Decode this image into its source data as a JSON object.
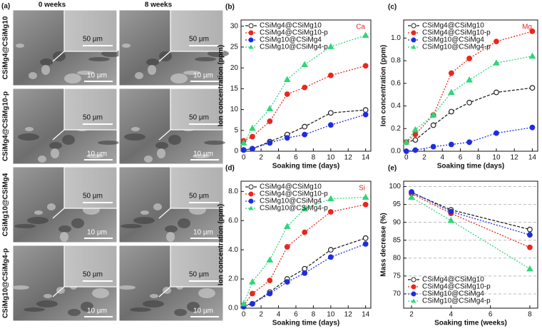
{
  "panel_a": {
    "label": "(a)",
    "columns": [
      "0 weeks",
      "8 weeks"
    ],
    "rows": [
      "CSiMg4@CSiMg10",
      "CSiMg4@CSiMg10-p",
      "CSiMg10@CSiMg4",
      "CSiMg10@CSiMg4-p"
    ],
    "inset_scale": "50 µm",
    "main_scale": "10 µm"
  },
  "chart_data": [
    {
      "type": "line",
      "panel": "(b)",
      "annotation": "Ca",
      "annotation_color": "#e8281e",
      "x_label": "Soaking time (days)",
      "y_label": "Ion concentration (ppm)",
      "x": [
        0,
        1,
        3,
        5,
        7,
        10,
        14
      ],
      "xlim": [
        -0.3,
        14.6
      ],
      "xticks": [
        0,
        2,
        4,
        6,
        8,
        10,
        12,
        14
      ],
      "ylim": [
        0,
        31.5
      ],
      "yticks": [
        0,
        5,
        10,
        15,
        20,
        25,
        30
      ],
      "grid": false,
      "legend": "upper left",
      "series": [
        {
          "name": "CSiMg4@CSiMg10",
          "color": "#222222",
          "linestyle": "dashed",
          "marker": "circle",
          "values": [
            0.3,
            0.6,
            2.3,
            4,
            5.9,
            9.2,
            9.9
          ]
        },
        {
          "name": "CSiMg4@CSiMg10-p",
          "color": "#e8281e",
          "linestyle": "dotted",
          "marker": "circle",
          "values": [
            2.5,
            3.5,
            7.2,
            13.7,
            15.3,
            18.2,
            20.5
          ]
        },
        {
          "name": "CSiMg10@CSiMg4",
          "color": "#1f2de0",
          "linestyle": "dotted",
          "marker": "circle",
          "values": [
            0.3,
            0.6,
            2,
            3.2,
            4,
            6.3,
            8.8
          ]
        },
        {
          "name": "CSiMg10@CSiMg4-p",
          "color": "#2fd67a",
          "linestyle": "dotted",
          "marker": "triangle",
          "values": [
            2,
            5.5,
            10.2,
            17.2,
            20.8,
            25.1,
            27.8
          ]
        }
      ]
    },
    {
      "type": "line",
      "panel": "(c)",
      "annotation": "Mg",
      "annotation_color": "#e8281e",
      "x_label": "Soaking time (days)",
      "y_label": "Ion concentration (ppm)",
      "x": [
        0,
        1,
        3,
        5,
        7,
        10,
        14
      ],
      "xlim": [
        -0.3,
        14.6
      ],
      "xticks": [
        0,
        2,
        4,
        6,
        8,
        10,
        12,
        14
      ],
      "ylim": [
        0,
        1.16
      ],
      "yticks": [
        {
          "value": 0,
          "label": "0.0"
        },
        0.2,
        0.4,
        0.6,
        0.8,
        {
          "value": 1,
          "label": "1.0"
        }
      ],
      "grid": false,
      "legend": "upper left",
      "series": [
        {
          "name": "CSiMg4@CSiMg10",
          "color": "#222222",
          "linestyle": "dashed",
          "marker": "circle",
          "values": [
            0.08,
            0.1,
            0.23,
            0.35,
            0.43,
            0.52,
            0.56
          ]
        },
        {
          "name": "CSiMg4@CSiMg10-p",
          "color": "#e8281e",
          "linestyle": "dotted",
          "marker": "circle",
          "values": [
            0.08,
            0.15,
            0.32,
            0.69,
            0.82,
            0.97,
            1.06
          ]
        },
        {
          "name": "CSiMg10@CSiMg4",
          "color": "#1f2de0",
          "linestyle": "dotted",
          "marker": "circle",
          "values": [
            0,
            0.01,
            0.04,
            0.06,
            0.08,
            0.16,
            0.21
          ]
        },
        {
          "name": "CSiMg10@CSiMg4-p",
          "color": "#2fd67a",
          "linestyle": "dotted",
          "marker": "triangle",
          "values": [
            0.08,
            0.19,
            0.32,
            0.52,
            0.63,
            0.78,
            0.84
          ]
        }
      ]
    },
    {
      "type": "line",
      "panel": "(d)",
      "annotation": "Si",
      "annotation_color": "#e8281e",
      "x_label": "Soaking time (days)",
      "y_label": "Ion concentration (ppm)",
      "x": [
        0,
        1,
        3,
        5,
        7,
        10,
        14
      ],
      "xlim": [
        -0.3,
        14.6
      ],
      "xticks": [
        0,
        2,
        4,
        6,
        8,
        10,
        12,
        14
      ],
      "ylim": [
        0,
        8.7
      ],
      "yticks": [
        {
          "value": 0,
          "label": "0.0"
        },
        {
          "value": 2,
          "label": "2.0"
        },
        {
          "value": 4,
          "label": "4.0"
        },
        {
          "value": 6,
          "label": "6.0"
        },
        {
          "value": 8,
          "label": "8.0"
        }
      ],
      "grid": false,
      "legend": "upper left",
      "series": [
        {
          "name": "CSiMg4@CSiMg10",
          "color": "#222222",
          "linestyle": "dashed",
          "marker": "circle",
          "values": [
            0.2,
            0.3,
            1.1,
            2,
            2.7,
            4,
            4.8
          ]
        },
        {
          "name": "CSiMg4@CSiMg10-p",
          "color": "#e8281e",
          "linestyle": "dotted",
          "marker": "circle",
          "values": [
            0.2,
            1,
            1.9,
            4.2,
            5.2,
            6.6,
            7.1
          ]
        },
        {
          "name": "CSiMg10@CSiMg4",
          "color": "#1f2de0",
          "linestyle": "dotted",
          "marker": "circle",
          "values": [
            0.1,
            0.3,
            1,
            1.8,
            2.4,
            3.5,
            4.4
          ]
        },
        {
          "name": "CSiMg10@CSiMg4-p",
          "color": "#2fd67a",
          "linestyle": "dotted",
          "marker": "triangle",
          "values": [
            0.3,
            1.8,
            3.3,
            5.6,
            6.8,
            7.5,
            7.6
          ]
        }
      ]
    },
    {
      "type": "line",
      "panel": "(e)",
      "x_label": "Soaking time (weeks)",
      "y_label": "Mass decrease (%)",
      "x": [
        2,
        4,
        8
      ],
      "xlim": [
        1.6,
        8.4
      ],
      "xticks": [
        2,
        4,
        6,
        8
      ],
      "ylim": [
        66,
        101.5
      ],
      "yticks": [
        70,
        75,
        80,
        85,
        90,
        95,
        100
      ],
      "grid": true,
      "legend": "lower left",
      "series": [
        {
          "name": "CSiMg4@CSiMg10",
          "color": "#222222",
          "linestyle": "dashed",
          "marker": "circle",
          "values": [
            98.3,
            93.5,
            88
          ]
        },
        {
          "name": "CSiMg4@CSiMg10-p",
          "color": "#e8281e",
          "linestyle": "dotted",
          "marker": "circle",
          "values": [
            98,
            92.5,
            83
          ]
        },
        {
          "name": "CSiMg10@CSiMg4",
          "color": "#1f2de0",
          "linestyle": "dotted",
          "marker": "circle",
          "values": [
            98.5,
            93,
            86.5
          ]
        },
        {
          "name": "CSiMg10@CSiMg4-p",
          "color": "#2fd67a",
          "linestyle": "dotted",
          "marker": "triangle",
          "values": [
            97,
            90.5,
            77
          ]
        }
      ]
    }
  ]
}
